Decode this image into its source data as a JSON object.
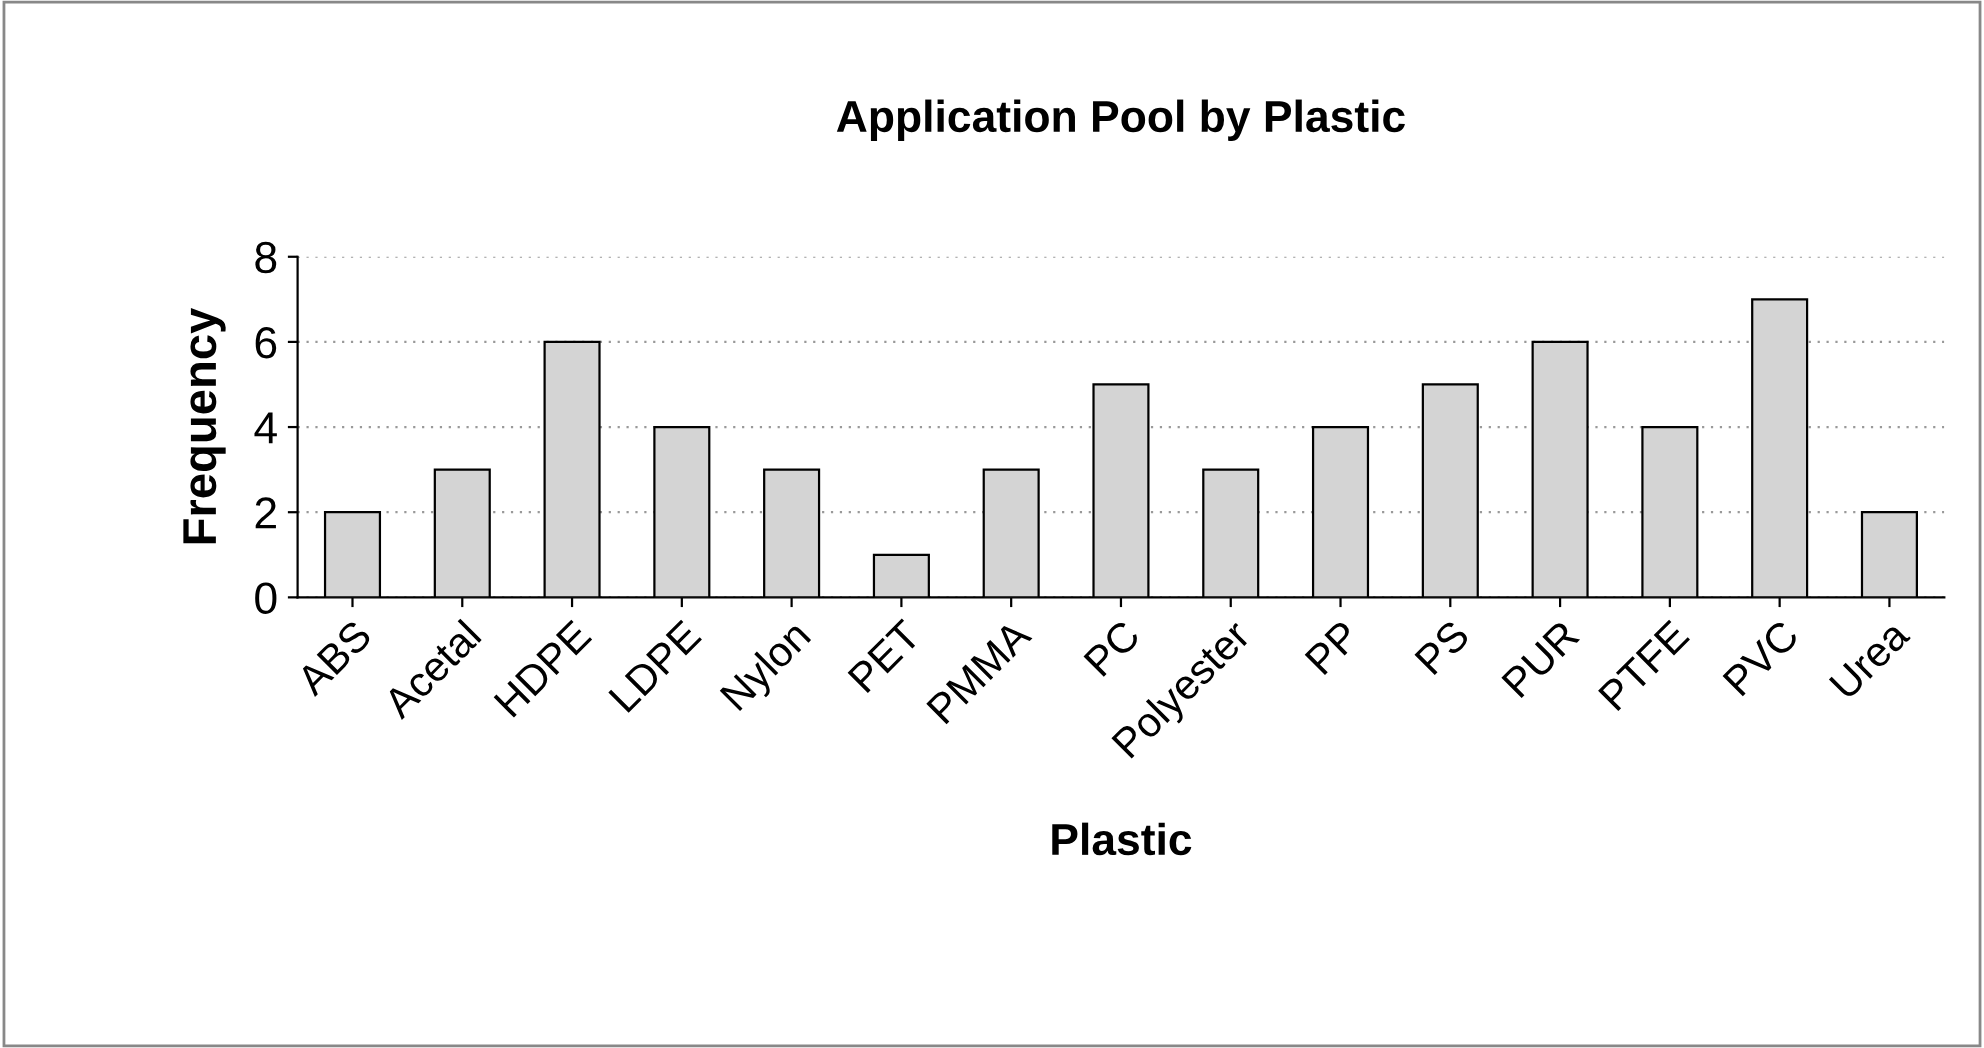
{
  "chart_data": {
    "type": "bar",
    "title": "Application Pool by Plastic",
    "xlabel": "Plastic",
    "ylabel": "Frequency",
    "categories": [
      "ABS",
      "Acetal",
      "HDPE",
      "LDPE",
      "Nylon",
      "PET",
      "PMMA",
      "PC",
      "Polyester",
      "PP",
      "PS",
      "PUR",
      "PTFE",
      "PVC",
      "Urea"
    ],
    "values": [
      2,
      3,
      6,
      4,
      3,
      1,
      3,
      5,
      3,
      4,
      5,
      6,
      4,
      7,
      2
    ],
    "color": "#d4d4d4",
    "ylim": [
      0,
      8
    ],
    "yticks": [
      0,
      2,
      4,
      6,
      8
    ],
    "grid": "y",
    "legend": false
  }
}
